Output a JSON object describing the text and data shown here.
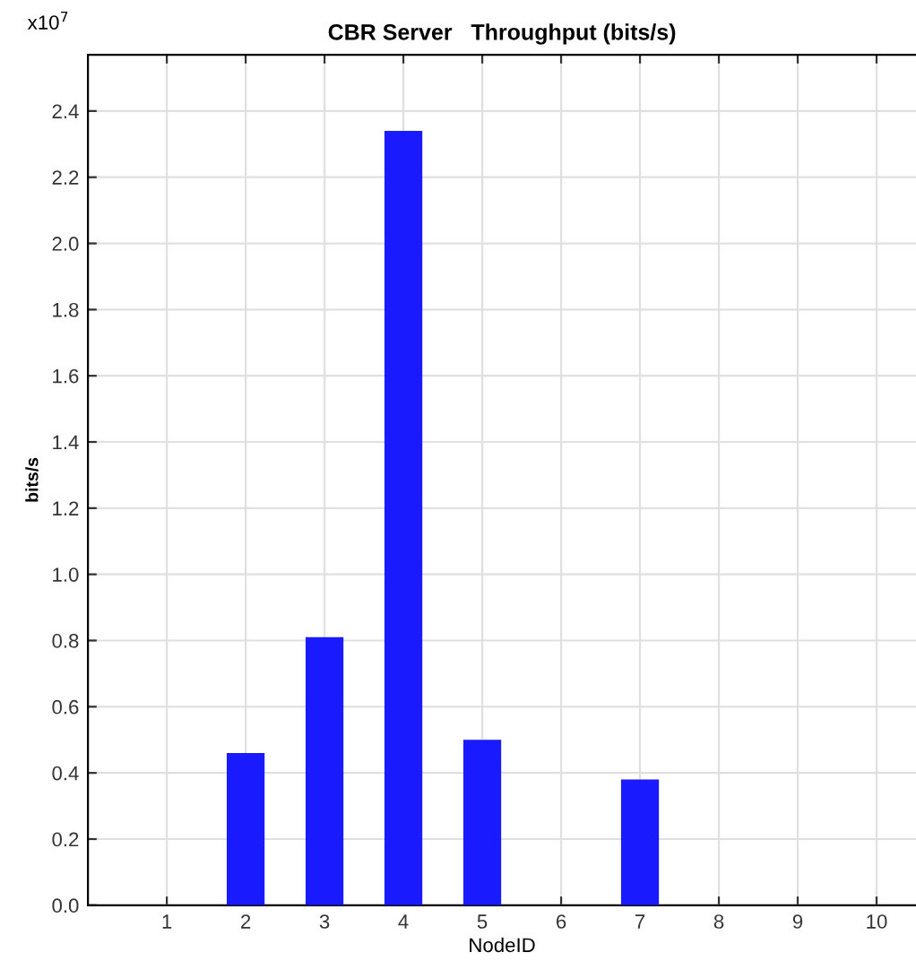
{
  "chart_data": {
    "type": "bar",
    "title": "CBR Server   Throughput (bits/s)",
    "xlabel": "NodeID",
    "ylabel": "bits/s",
    "annotations": [
      "x10$^{7}$"
    ],
    "x": [
      2,
      3,
      4,
      5,
      7
    ],
    "values": [
      0.46,
      0.81,
      2.34,
      0.5,
      0.38
    ],
    "color": "#1a1aff",
    "xlim": [
      0,
      10.5
    ],
    "xticks": [
      1,
      2,
      3,
      4,
      5,
      6,
      7,
      8,
      9,
      10
    ],
    "ylim": [
      0,
      2.57
    ],
    "yticks": [
      {
        "value": 0,
        "label": "0.0"
      },
      0.2,
      0.4,
      0.6,
      0.8,
      {
        "value": 1,
        "label": "1.0"
      },
      1.2,
      1.4,
      1.6,
      1.8,
      {
        "value": 2,
        "label": "2.0"
      },
      2.2,
      2.4
    ],
    "grid": true
  }
}
